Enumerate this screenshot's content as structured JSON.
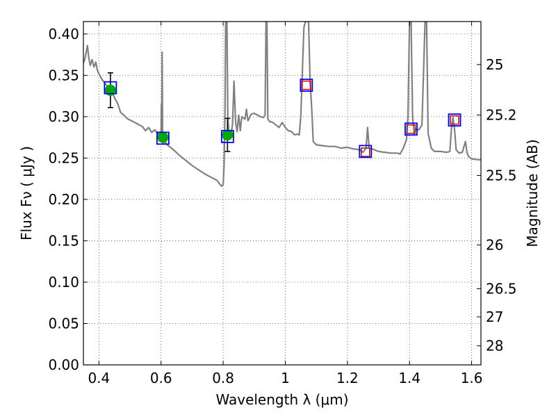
{
  "chart_data": {
    "type": "scatter",
    "xlabel": "Wavelength  λ (μm)",
    "ylabel": "Flux  Fν  ( μJy )",
    "right_ylabel": "Magnitude (AB)",
    "xlim": [
      0.35,
      1.63
    ],
    "ylim": [
      0.0,
      0.415
    ],
    "x_ticks": [
      0.4,
      0.6,
      0.8,
      1.0,
      1.2,
      1.4,
      1.6
    ],
    "x_tick_labels": [
      "0.4",
      "0.6",
      "0.8",
      "1",
      "1.2",
      "1.4",
      "1.6"
    ],
    "y_ticks": [
      0.0,
      0.05,
      0.1,
      0.15,
      0.2,
      0.25,
      0.3,
      0.35,
      0.4
    ],
    "y_tick_labels": [
      "0.00",
      "0.05",
      "0.10",
      "0.15",
      "0.20",
      "0.25",
      "0.30",
      "0.35",
      "0.40"
    ],
    "right_ticks": [
      {
        "label": "25",
        "flux": 0.363
      },
      {
        "label": "25.2",
        "flux": 0.302
      },
      {
        "label": "25.5",
        "flux": 0.229
      },
      {
        "label": "26",
        "flux": 0.145
      },
      {
        "label": "26.5",
        "flux": 0.092
      },
      {
        "label": "27",
        "flux": 0.058
      },
      {
        "label": "28",
        "flux": 0.023
      }
    ],
    "grid": true,
    "colors": {
      "model": "#808080",
      "filled_marker": "#00aa00",
      "model_flux_box": "#0000ff",
      "open_marker": "#cc0000",
      "errorbar": "#000000"
    },
    "model_spectrum": [
      [
        0.35,
        0.365
      ],
      [
        0.355,
        0.37
      ],
      [
        0.36,
        0.38
      ],
      [
        0.363,
        0.386
      ],
      [
        0.367,
        0.372
      ],
      [
        0.372,
        0.362
      ],
      [
        0.378,
        0.369
      ],
      [
        0.384,
        0.36
      ],
      [
        0.39,
        0.366
      ],
      [
        0.395,
        0.356
      ],
      [
        0.4,
        0.352
      ],
      [
        0.41,
        0.345
      ],
      [
        0.42,
        0.34
      ],
      [
        0.43,
        0.336
      ],
      [
        0.44,
        0.333
      ],
      [
        0.45,
        0.323
      ],
      [
        0.46,
        0.316
      ],
      [
        0.47,
        0.305
      ],
      [
        0.48,
        0.302
      ],
      [
        0.49,
        0.298
      ],
      [
        0.5,
        0.296
      ],
      [
        0.52,
        0.292
      ],
      [
        0.54,
        0.288
      ],
      [
        0.55,
        0.283
      ],
      [
        0.56,
        0.287
      ],
      [
        0.57,
        0.281
      ],
      [
        0.58,
        0.284
      ],
      [
        0.59,
        0.279
      ],
      [
        0.6,
        0.282
      ],
      [
        0.601,
        0.315
      ],
      [
        0.602,
        0.27
      ],
      [
        0.6035,
        0.378
      ],
      [
        0.605,
        0.268
      ],
      [
        0.61,
        0.27
      ],
      [
        0.62,
        0.266
      ],
      [
        0.64,
        0.26
      ],
      [
        0.66,
        0.253
      ],
      [
        0.68,
        0.247
      ],
      [
        0.7,
        0.241
      ],
      [
        0.72,
        0.236
      ],
      [
        0.74,
        0.231
      ],
      [
        0.76,
        0.227
      ],
      [
        0.78,
        0.223
      ],
      [
        0.79,
        0.218
      ],
      [
        0.795,
        0.216
      ],
      [
        0.8,
        0.218
      ],
      [
        0.803,
        0.24
      ],
      [
        0.806,
        0.31
      ],
      [
        0.808,
        0.415
      ],
      [
        0.812,
        0.415
      ],
      [
        0.815,
        0.3
      ],
      [
        0.818,
        0.284
      ],
      [
        0.825,
        0.278
      ],
      [
        0.83,
        0.29
      ],
      [
        0.835,
        0.343
      ],
      [
        0.84,
        0.293
      ],
      [
        0.845,
        0.282
      ],
      [
        0.85,
        0.302
      ],
      [
        0.855,
        0.283
      ],
      [
        0.86,
        0.3
      ],
      [
        0.87,
        0.297
      ],
      [
        0.875,
        0.309
      ],
      [
        0.88,
        0.295
      ],
      [
        0.89,
        0.303
      ],
      [
        0.9,
        0.304
      ],
      [
        0.91,
        0.302
      ],
      [
        0.92,
        0.3
      ],
      [
        0.93,
        0.299
      ],
      [
        0.935,
        0.302
      ],
      [
        0.938,
        0.415
      ],
      [
        0.941,
        0.415
      ],
      [
        0.944,
        0.297
      ],
      [
        0.95,
        0.294
      ],
      [
        0.96,
        0.293
      ],
      [
        0.97,
        0.29
      ],
      [
        0.98,
        0.287
      ],
      [
        0.99,
        0.293
      ],
      [
        1.0,
        0.287
      ],
      [
        1.01,
        0.283
      ],
      [
        1.02,
        0.282
      ],
      [
        1.03,
        0.278
      ],
      [
        1.04,
        0.279
      ],
      [
        1.045,
        0.278
      ],
      [
        1.05,
        0.3
      ],
      [
        1.06,
        0.408
      ],
      [
        1.065,
        0.415
      ],
      [
        1.075,
        0.415
      ],
      [
        1.08,
        0.342
      ],
      [
        1.085,
        0.31
      ],
      [
        1.09,
        0.27
      ],
      [
        1.1,
        0.266
      ],
      [
        1.12,
        0.265
      ],
      [
        1.14,
        0.264
      ],
      [
        1.16,
        0.264
      ],
      [
        1.18,
        0.262
      ],
      [
        1.2,
        0.263
      ],
      [
        1.22,
        0.261
      ],
      [
        1.24,
        0.26
      ],
      [
        1.25,
        0.257
      ],
      [
        1.26,
        0.262
      ],
      [
        1.265,
        0.287
      ],
      [
        1.27,
        0.262
      ],
      [
        1.28,
        0.261
      ],
      [
        1.3,
        0.258
      ],
      [
        1.32,
        0.257
      ],
      [
        1.34,
        0.256
      ],
      [
        1.36,
        0.256
      ],
      [
        1.37,
        0.255
      ],
      [
        1.38,
        0.262
      ],
      [
        1.39,
        0.272
      ],
      [
        1.395,
        0.3
      ],
      [
        1.4,
        0.415
      ],
      [
        1.405,
        0.415
      ],
      [
        1.41,
        0.3
      ],
      [
        1.415,
        0.279
      ],
      [
        1.42,
        0.285
      ],
      [
        1.43,
        0.284
      ],
      [
        1.44,
        0.29
      ],
      [
        1.45,
        0.415
      ],
      [
        1.455,
        0.415
      ],
      [
        1.46,
        0.28
      ],
      [
        1.47,
        0.262
      ],
      [
        1.48,
        0.258
      ],
      [
        1.5,
        0.258
      ],
      [
        1.52,
        0.257
      ],
      [
        1.53,
        0.258
      ],
      [
        1.535,
        0.285
      ],
      [
        1.54,
        0.299
      ],
      [
        1.545,
        0.285
      ],
      [
        1.55,
        0.26
      ],
      [
        1.56,
        0.256
      ],
      [
        1.57,
        0.257
      ],
      [
        1.58,
        0.27
      ],
      [
        1.585,
        0.257
      ],
      [
        1.59,
        0.252
      ],
      [
        1.6,
        0.249
      ],
      [
        1.62,
        0.248
      ],
      [
        1.63,
        0.248
      ]
    ],
    "observed_points": [
      {
        "x": 0.437,
        "y": 0.332,
        "err": 0.021
      },
      {
        "x": 0.606,
        "y": 0.275,
        "err": 0.0
      },
      {
        "x": 0.814,
        "y": 0.278,
        "err": 0.02
      }
    ],
    "model_flux_points": [
      {
        "x": 0.437,
        "y": 0.335
      },
      {
        "x": 0.606,
        "y": 0.274
      },
      {
        "x": 0.814,
        "y": 0.276
      },
      {
        "x": 1.068,
        "y": 0.338
      },
      {
        "x": 1.258,
        "y": 0.258
      },
      {
        "x": 1.405,
        "y": 0.285
      },
      {
        "x": 1.545,
        "y": 0.296
      }
    ],
    "upper_points": [
      {
        "x": 1.068,
        "y": 0.338
      },
      {
        "x": 1.258,
        "y": 0.257
      },
      {
        "x": 1.405,
        "y": 0.285
      },
      {
        "x": 1.545,
        "y": 0.296
      }
    ]
  }
}
